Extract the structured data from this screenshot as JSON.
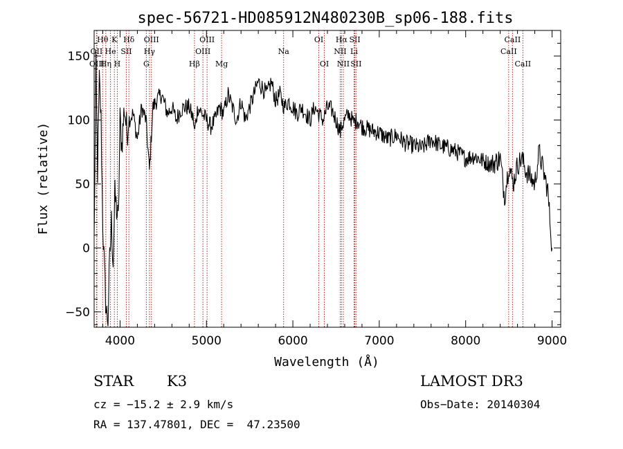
{
  "chart_data": {
    "type": "line",
    "title": "spec-56721-HD085912N480230B_sp06-188.fits",
    "xlabel": "Wavelength (Å)",
    "ylabel": "Flux (relative)",
    "xlim": [
      3700,
      9100
    ],
    "ylim": [
      -62,
      170
    ],
    "xticks": [
      4000,
      5000,
      6000,
      7000,
      8000,
      9000
    ],
    "yticks": [
      -50,
      0,
      50,
      100,
      150
    ],
    "grid": false,
    "line_color": "#000000",
    "marker_color": "#b22222",
    "series": [
      {
        "x": [
          3700,
          3720,
          3740,
          3760,
          3780,
          3800,
          3820,
          3840,
          3860,
          3880,
          3900,
          3920,
          3940,
          3960,
          3980,
          4000,
          4020,
          4050,
          4080,
          4100,
          4150,
          4200,
          4250,
          4300,
          4340,
          4380,
          4420,
          4480,
          4550,
          4600,
          4650,
          4700,
          4750,
          4800,
          4850,
          4860,
          4900,
          4950,
          5000,
          5050,
          5100,
          5150,
          5200,
          5250,
          5300,
          5350,
          5400,
          5450,
          5500,
          5550,
          5600,
          5650,
          5700,
          5750,
          5800,
          5850,
          5900,
          5950,
          6000,
          6050,
          6100,
          6150,
          6200,
          6250,
          6300,
          6350,
          6400,
          6450,
          6500,
          6550,
          6563,
          6600,
          6650,
          6700,
          6750,
          6800,
          6900,
          7000,
          7100,
          7200,
          7300,
          7400,
          7500,
          7600,
          7700,
          7800,
          7900,
          8000,
          8100,
          8200,
          8300,
          8400,
          8450,
          8500,
          8550,
          8600,
          8650,
          8700,
          8750,
          8800,
          8850,
          8900,
          8950,
          9000
        ],
        "y": [
          5,
          140,
          60,
          130,
          100,
          20,
          -20,
          -50,
          -55,
          -10,
          20,
          -10,
          40,
          30,
          20,
          100,
          80,
          110,
          90,
          100,
          105,
          85,
          110,
          100,
          60,
          110,
          115,
          120,
          105,
          110,
          100,
          108,
          110,
          110,
          100,
          90,
          110,
          105,
          100,
          95,
          100,
          110,
          105,
          120,
          110,
          100,
          115,
          100,
          110,
          120,
          130,
          125,
          120,
          130,
          115,
          120,
          110,
          115,
          110,
          105,
          110,
          105,
          100,
          110,
          105,
          100,
          110,
          108,
          100,
          90,
          95,
          100,
          105,
          98,
          100,
          95,
          92,
          90,
          85,
          88,
          82,
          80,
          78,
          85,
          80,
          78,
          75,
          70,
          72,
          68,
          65,
          70,
          40,
          65,
          50,
          65,
          70,
          60,
          55,
          50,
          75,
          60,
          45,
          0
        ]
      }
    ],
    "lines": [
      {
        "label": "Hθ",
        "x": 3798,
        "row": 1
      },
      {
        "label": "OII",
        "x": 3727,
        "row": 2
      },
      {
        "label": "OIII",
        "x": 3732,
        "row": 3
      },
      {
        "label": "K",
        "x": 3934,
        "row": 1
      },
      {
        "label": "He",
        "x": 3889,
        "row": 2
      },
      {
        "label": "Hη",
        "x": 3835,
        "row": 3
      },
      {
        "label": "Hδ",
        "x": 4102,
        "row": 1
      },
      {
        "label": "SII",
        "x": 4072,
        "row": 2
      },
      {
        "label": "H",
        "x": 3968,
        "row": 3
      },
      {
        "label": "OIII",
        "x": 4363,
        "row": 1
      },
      {
        "label": "Hγ",
        "x": 4340,
        "row": 2
      },
      {
        "label": "G",
        "x": 4304,
        "row": 3
      },
      {
        "label": "OIII",
        "x": 5007,
        "row": 1
      },
      {
        "label": "OIII",
        "x": 4959,
        "row": 2
      },
      {
        "label": "Hβ",
        "x": 4861,
        "row": 3
      },
      {
        "label": "Mg",
        "x": 5175,
        "row": 3
      },
      {
        "label": "Na",
        "x": 5893,
        "row": 2
      },
      {
        "label": "OI",
        "x": 6300,
        "row": 1
      },
      {
        "label": "OI",
        "x": 6364,
        "row": 3
      },
      {
        "label": "Hα",
        "x": 6563,
        "row": 1
      },
      {
        "label": "NII",
        "x": 6548,
        "row": 2
      },
      {
        "label": "NII",
        "x": 6584,
        "row": 3
      },
      {
        "label": "SII",
        "x": 6717,
        "row": 1
      },
      {
        "label": "Li",
        "x": 6708,
        "row": 2
      },
      {
        "label": "SII",
        "x": 6731,
        "row": 3
      },
      {
        "label": "CaII",
        "x": 8542,
        "row": 1
      },
      {
        "label": "CaII",
        "x": 8498,
        "row": 2
      },
      {
        "label": "CaII",
        "x": 8662,
        "row": 3
      }
    ]
  },
  "info": {
    "object_class": "STAR",
    "subclass": "K3",
    "survey": "LAMOST DR3",
    "cz": "cz = −15.2 ± 2.9 km/s",
    "obs_date": "Obs−Date: 20140304",
    "coords": "RA = 137.47801, DEC =  47.23500"
  }
}
